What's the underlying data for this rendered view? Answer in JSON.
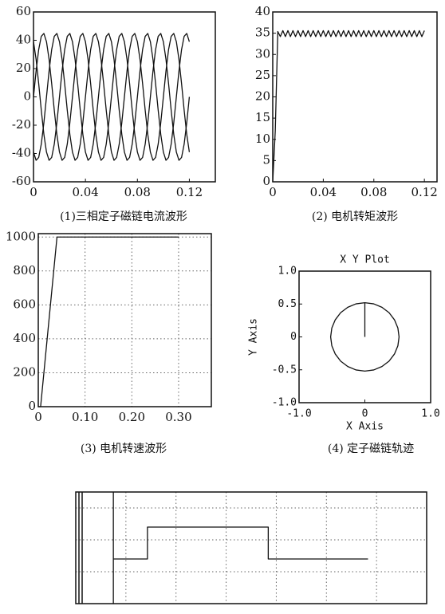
{
  "chart_data": [
    {
      "type": "line",
      "caption": "(1)三相定子磁链电流波形",
      "x": [
        0,
        0.002,
        0.004,
        0.006,
        0.008,
        0.01,
        0.012,
        0.014,
        0.016,
        0.018,
        0.02,
        0.022,
        0.024,
        0.026,
        0.028,
        0.03,
        0.032,
        0.034,
        0.036,
        0.038,
        0.04,
        0.042,
        0.044,
        0.046,
        0.048,
        0.05,
        0.052,
        0.054,
        0.056,
        0.058,
        0.06,
        0.062,
        0.064,
        0.066,
        0.068,
        0.07,
        0.072,
        0.074,
        0.076,
        0.078,
        0.08,
        0.082,
        0.084,
        0.086,
        0.088,
        0.09,
        0.092,
        0.094,
        0.096,
        0.098,
        0.1,
        0.102,
        0.104,
        0.106,
        0.108,
        0.11,
        0.112,
        0.114,
        0.116,
        0.118,
        0.12
      ],
      "series": [
        {
          "color": "#111111",
          "values": [
            0,
            18.3,
            33.4,
            42.8,
            44.8,
            39,
            26.5,
            9.4,
            -9.4,
            -26.5,
            -39,
            -44.8,
            -42.8,
            -33.4,
            -18.3,
            0,
            18.3,
            33.4,
            42.8,
            44.8,
            39,
            26.5,
            9.4,
            -9.4,
            -26.5,
            -39,
            -44.8,
            -42.8,
            -33.4,
            -18.3,
            0,
            18.3,
            33.4,
            42.8,
            44.8,
            39,
            26.5,
            9.4,
            -9.4,
            -26.5,
            -39,
            -44.8,
            -42.8,
            -33.4,
            -18.3,
            0,
            18.3,
            33.4,
            42.8,
            44.8,
            39,
            26.5,
            9.4,
            -9.4,
            -26.5,
            -39,
            -44.8,
            -42.8,
            -33.4,
            -18.3,
            0
          ]
        },
        {
          "color": "#111111",
          "values": [
            -39,
            -44.8,
            -42.8,
            -33.4,
            -18.3,
            0,
            18.3,
            33.4,
            42.8,
            44.8,
            39,
            26.5,
            9.4,
            -9.4,
            -26.5,
            -39,
            -44.8,
            -42.8,
            -33.4,
            -18.3,
            0,
            18.3,
            33.4,
            42.8,
            44.8,
            39,
            26.5,
            9.4,
            -9.4,
            -26.5,
            -39,
            -44.8,
            -42.8,
            -33.4,
            -18.3,
            0,
            18.3,
            33.4,
            42.8,
            44.8,
            39,
            26.5,
            9.4,
            -9.4,
            -26.5,
            -39,
            -44.8,
            -42.8,
            -33.4,
            -18.3,
            0,
            18.3,
            33.4,
            42.8,
            44.8,
            39,
            26.5,
            9.4,
            -9.4,
            -26.5,
            -39
          ]
        },
        {
          "color": "#111111",
          "values": [
            39,
            26.5,
            9.4,
            -9.4,
            -26.5,
            -39,
            -44.8,
            -42.8,
            -33.4,
            -18.3,
            0,
            18.3,
            33.4,
            42.8,
            44.8,
            39,
            26.5,
            9.4,
            -9.4,
            -26.5,
            -39,
            -44.8,
            -42.8,
            -33.4,
            -18.3,
            0,
            18.3,
            33.4,
            42.8,
            44.8,
            39,
            26.5,
            9.4,
            -9.4,
            -26.5,
            -39,
            -44.8,
            -42.8,
            -33.4,
            -18.3,
            0,
            18.3,
            33.4,
            42.8,
            44.8,
            39,
            26.5,
            9.4,
            -9.4,
            -26.5,
            -39,
            -44.8,
            -42.8,
            -33.4,
            -18.3,
            0,
            18.3,
            33.4,
            42.8,
            44.8,
            39
          ]
        }
      ],
      "xlim": [
        0,
        0.14
      ],
      "xticks": [
        0,
        0.04,
        0.08,
        0.12
      ],
      "ylim": [
        -60,
        60
      ],
      "yticks": [
        -60,
        -40,
        -20,
        0,
        20,
        40,
        60
      ],
      "grid": false
    },
    {
      "type": "line",
      "caption": "(2)  电机转矩波形",
      "x": [
        0,
        0.002,
        0.004,
        0.006,
        0.008,
        0.01,
        0.012,
        0.014,
        0.016,
        0.018,
        0.02,
        0.022,
        0.024,
        0.026,
        0.028,
        0.03,
        0.032,
        0.034,
        0.036,
        0.038,
        0.04,
        0.042,
        0.044,
        0.046,
        0.048,
        0.05,
        0.052,
        0.054,
        0.056,
        0.058,
        0.06,
        0.062,
        0.064,
        0.066,
        0.068,
        0.07,
        0.072,
        0.074,
        0.076,
        0.078,
        0.08,
        0.082,
        0.084,
        0.086,
        0.088,
        0.09,
        0.092,
        0.094,
        0.096,
        0.098,
        0.1,
        0.102,
        0.104,
        0.106,
        0.108,
        0.11,
        0.112,
        0.114,
        0.116,
        0.118,
        0.12
      ],
      "values": [
        0,
        12,
        35.4,
        34.2,
        35.6,
        34.2,
        35.6,
        34.2,
        35.6,
        34.2,
        35.6,
        34.2,
        35.6,
        34.2,
        35.6,
        34.2,
        35.6,
        34.2,
        35.6,
        34.2,
        35.6,
        34.2,
        35.6,
        34.2,
        35.6,
        34.2,
        35.6,
        34.2,
        35.6,
        34.2,
        35.6,
        34.2,
        35.6,
        34.2,
        35.6,
        34.2,
        35.6,
        34.2,
        35.6,
        34.2,
        35.6,
        34.2,
        35.6,
        34.2,
        35.6,
        34.2,
        35.6,
        34.2,
        35.6,
        34.2,
        35.6,
        34.2,
        35.6,
        34.2,
        35.6,
        34.2,
        35.6,
        34.2,
        35.6,
        34.2,
        35.6
      ],
      "color": "#111111",
      "xlim": [
        0,
        0.13
      ],
      "xticks": [
        0,
        0.04,
        0.08,
        0.12
      ],
      "ylim": [
        0,
        40
      ],
      "yticks": [
        0,
        5,
        10,
        15,
        20,
        25,
        30,
        35,
        40
      ],
      "grid": false
    },
    {
      "type": "line",
      "caption": "(3)  电机转速波形",
      "x": [
        0,
        0.005,
        0.04,
        0.3
      ],
      "values": [
        0,
        0,
        1000,
        1000
      ],
      "color": "#111111",
      "xlim": [
        0,
        0.37
      ],
      "xticks": [
        0,
        {
          "value": 0.1,
          "label": "0.10"
        },
        {
          "value": 0.2,
          "label": "0.20"
        },
        {
          "value": 0.3,
          "label": "0.30"
        }
      ],
      "ylim": [
        0,
        1020
      ],
      "yticks": [
        0,
        200,
        400,
        600,
        800,
        1000
      ],
      "grid": true
    },
    {
      "type": "line",
      "title": "X Y Plot",
      "x_label": "X Axis",
      "y_label": "Y Axis",
      "caption": "(4)  定子磁链轨迹",
      "x": [
        0,
        0,
        -0.135,
        -0.26,
        -0.368,
        -0.45,
        -0.502,
        -0.52,
        -0.502,
        -0.45,
        -0.368,
        -0.26,
        -0.135,
        0,
        0.135,
        0.26,
        0.368,
        0.45,
        0.502,
        0.52,
        0.502,
        0.45,
        0.368,
        0.26,
        0.135,
        0
      ],
      "values": [
        0,
        0.52,
        0.502,
        0.45,
        0.368,
        0.26,
        0.135,
        0,
        -0.135,
        -0.26,
        -0.368,
        -0.45,
        -0.502,
        -0.52,
        -0.502,
        -0.45,
        -0.368,
        -0.26,
        -0.135,
        0,
        0.135,
        0.26,
        0.368,
        0.45,
        0.502,
        0.52
      ],
      "color": "#111111",
      "xlim": [
        -1,
        1
      ],
      "xticks": [
        {
          "value": -1,
          "label": "-1.0"
        },
        0,
        {
          "value": 1,
          "label": "1.0"
        }
      ],
      "ylim": [
        -1,
        1
      ],
      "yticks": [
        {
          "value": 1,
          "label": "1.0"
        },
        0.5,
        0,
        -0.5,
        {
          "value": -1,
          "label": "-1.0"
        }
      ],
      "grid": false
    },
    {
      "type": "line",
      "x": [
        0.75,
        0.75,
        0.75,
        1.43,
        1.43,
        3.84,
        3.84,
        5.83
      ],
      "values": [
        3.5,
        0,
        1.4,
        1.4,
        2.4,
        2.4,
        1.4,
        1.4
      ],
      "color": "#111111",
      "xlim": [
        0,
        7
      ],
      "xticks": [
        1,
        2,
        3,
        4,
        5,
        6
      ],
      "ylim": [
        0,
        3.5
      ],
      "yticks": [
        1,
        2,
        3
      ],
      "grid": true,
      "tick_labels": false
    }
  ]
}
